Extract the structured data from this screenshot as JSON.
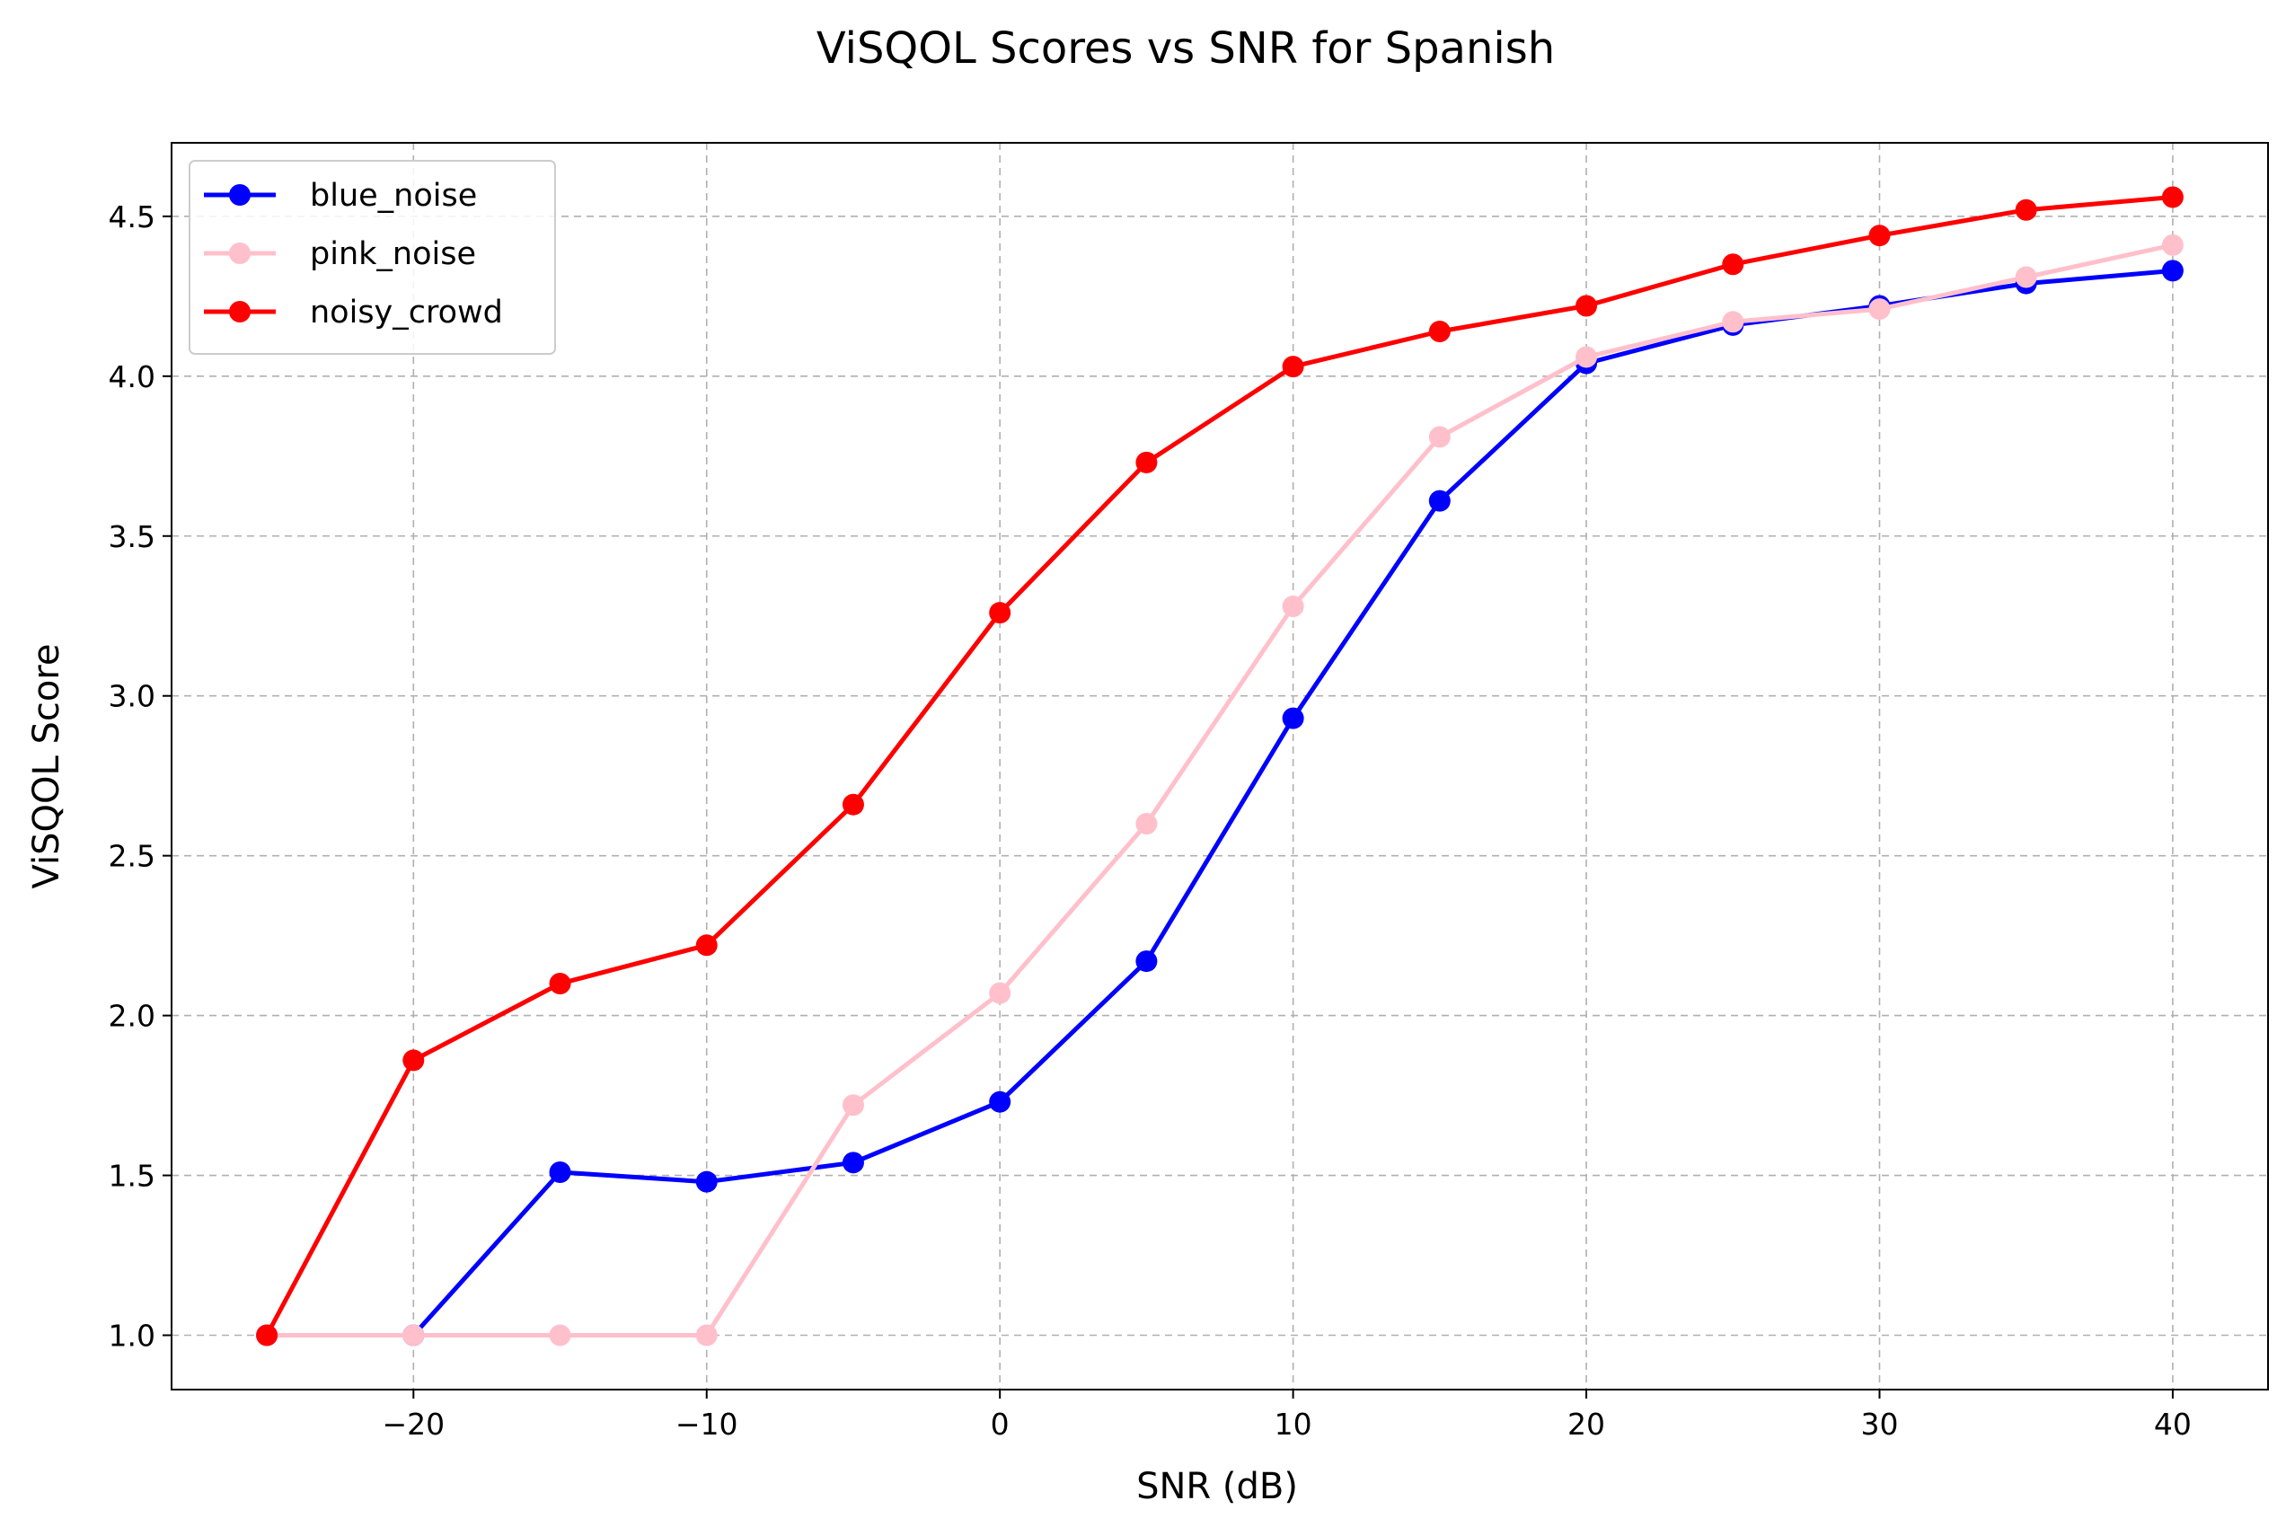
{
  "chart_data": {
    "type": "line",
    "title": "ViSQOL Scores vs SNR for Spanish",
    "xlabel": "SNR (dB)",
    "ylabel": "ViSQOL Score",
    "xlim": [
      -28.25,
      43.25
    ],
    "ylim": [
      0.83,
      4.73
    ],
    "xticks": [
      -20,
      -10,
      0,
      10,
      20,
      30,
      40
    ],
    "xtick_labels": [
      "−20",
      "−10",
      "0",
      "10",
      "20",
      "30",
      "40"
    ],
    "yticks": [
      1.0,
      1.5,
      2.0,
      2.5,
      3.0,
      3.5,
      4.0,
      4.5
    ],
    "ytick_labels": [
      "1.0",
      "1.5",
      "2.0",
      "2.5",
      "3.0",
      "3.5",
      "4.0",
      "4.5"
    ],
    "grid": true,
    "legend_position": "top-left",
    "x": [
      -25,
      -20,
      -15,
      -10,
      -5,
      0,
      5,
      10,
      15,
      20,
      25,
      30,
      35,
      40
    ],
    "series": [
      {
        "name": "blue_noise",
        "color": "#0000ff",
        "values": [
          1.0,
          1.0,
          1.51,
          1.48,
          1.54,
          1.73,
          2.17,
          2.93,
          3.61,
          4.04,
          4.16,
          4.22,
          4.29,
          4.33
        ]
      },
      {
        "name": "pink_noise",
        "color": "#ffc0cb",
        "values": [
          1.0,
          1.0,
          1.0,
          1.0,
          1.72,
          2.07,
          2.6,
          3.28,
          3.81,
          4.06,
          4.17,
          4.21,
          4.31,
          4.41
        ]
      },
      {
        "name": "noisy_crowd",
        "color": "#ff0000",
        "values": [
          1.0,
          1.86,
          2.1,
          2.22,
          2.66,
          3.26,
          3.73,
          4.03,
          4.14,
          4.22,
          4.35,
          4.44,
          4.52,
          4.56
        ]
      }
    ]
  }
}
